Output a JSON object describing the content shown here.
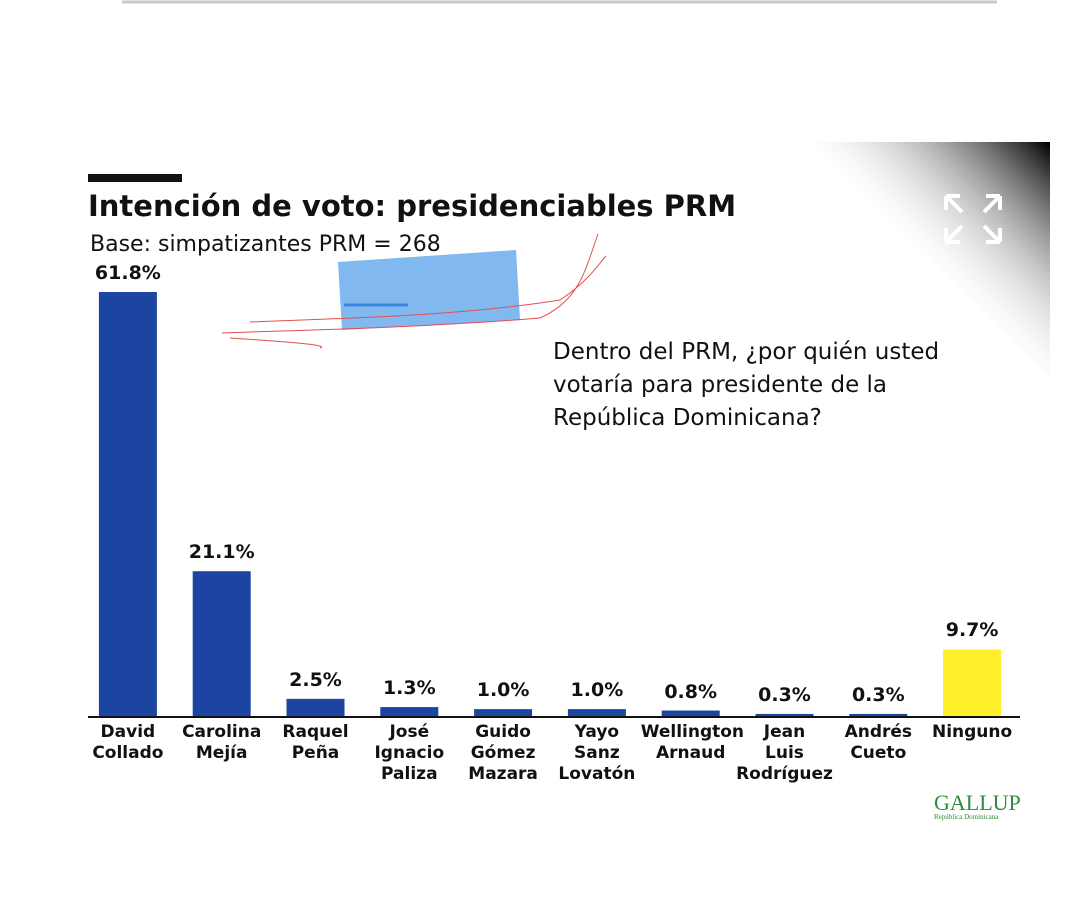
{
  "chart_data": {
    "type": "bar",
    "title": "Intención de voto: presidenciables PRM",
    "subtitle": "Base: simpatizantes PRM = 268",
    "annotation": "Dentro del PRM, ¿por quién usted votaría para presidente de la República Dominicana?",
    "source": "GALLUP",
    "source_subtitle": "República Dominicana",
    "categories": [
      "David\nCollado",
      "Carolina\nMejía",
      "Raquel\nPeña",
      "José\nIgnacio\nPaliza",
      "Guido\nGómez\nMazara",
      "Yayo\nSanz\nLovatón",
      "Wellington\nArnaud",
      "Jean\nLuis\nRodríguez",
      "Andrés\nCueto",
      "Ninguno"
    ],
    "values": [
      61.8,
      21.1,
      2.5,
      1.3,
      1.0,
      1.0,
      0.8,
      0.3,
      0.3,
      9.7
    ],
    "value_labels": [
      "61.8%",
      "21.1%",
      "2.5%",
      "1.3%",
      "1.0%",
      "1.0%",
      "0.8%",
      "0.3%",
      "0.3%",
      "9.7%"
    ],
    "colors": [
      "#1b45a0",
      "#1b45a0",
      "#1b45a0",
      "#1b45a0",
      "#1b45a0",
      "#1b45a0",
      "#1b45a0",
      "#1b45a0",
      "#1b45a0",
      "#ffee2a"
    ]
  }
}
